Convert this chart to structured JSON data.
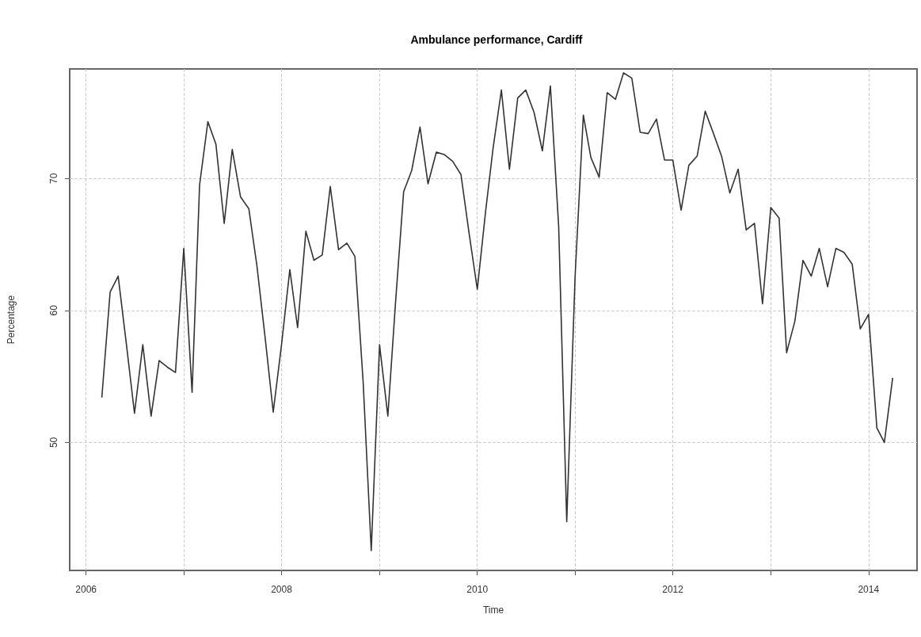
{
  "chart_data": {
    "type": "line",
    "title": "Ambulance performance, Cardiff",
    "xlabel": "Time",
    "ylabel": "Percentage",
    "x": [
      "2006-03",
      "2006-04",
      "2006-05",
      "2006-06",
      "2006-07",
      "2006-08",
      "2006-09",
      "2006-10",
      "2006-11",
      "2006-12",
      "2007-01",
      "2007-02",
      "2007-03",
      "2007-04",
      "2007-05",
      "2007-06",
      "2007-07",
      "2007-08",
      "2007-09",
      "2007-10",
      "2007-11",
      "2007-12",
      "2008-01",
      "2008-02",
      "2008-03",
      "2008-04",
      "2008-05",
      "2008-06",
      "2008-07",
      "2008-08",
      "2008-09",
      "2008-10",
      "2008-11",
      "2008-12",
      "2009-01",
      "2009-02",
      "2009-03",
      "2009-04",
      "2009-05",
      "2009-06",
      "2009-07",
      "2009-08",
      "2009-09",
      "2009-10",
      "2009-11",
      "2009-12",
      "2010-01",
      "2010-02",
      "2010-03",
      "2010-04",
      "2010-05",
      "2010-06",
      "2010-07",
      "2010-08",
      "2010-09",
      "2010-10",
      "2010-11",
      "2010-12",
      "2011-01",
      "2011-02",
      "2011-03",
      "2011-04",
      "2011-05",
      "2011-06",
      "2011-07",
      "2011-08",
      "2011-09",
      "2011-10",
      "2011-11",
      "2011-12",
      "2012-01",
      "2012-02",
      "2012-03",
      "2012-04",
      "2012-05",
      "2012-06",
      "2012-07",
      "2012-08",
      "2012-09",
      "2012-10",
      "2012-11",
      "2012-12",
      "2013-01",
      "2013-02",
      "2013-03",
      "2013-04",
      "2013-05",
      "2013-06",
      "2013-07",
      "2013-08",
      "2013-09",
      "2013-10",
      "2013-11",
      "2013-12",
      "2014-01",
      "2014-02",
      "2014-03",
      "2014-04"
    ],
    "series": [
      {
        "color": "#333333",
        "values": [
          53.4,
          61.4,
          62.6,
          57.4,
          52.2,
          57.4,
          52.0,
          56.2,
          55.7,
          55.3,
          64.7,
          53.8,
          69.5,
          74.3,
          72.6,
          66.6,
          72.2,
          68.6,
          67.7,
          63.4,
          57.9,
          52.3,
          57.4,
          63.1,
          58.7,
          66.0,
          63.8,
          64.2,
          69.4,
          64.6,
          65.1,
          64.1,
          54.5,
          41.8,
          57.4,
          52.0,
          60.4,
          69.0,
          70.6,
          73.9,
          69.6,
          72.0,
          71.8,
          71.3,
          70.3,
          65.9,
          61.6,
          67.5,
          72.3,
          76.7,
          70.7,
          76.1,
          76.7,
          75.0,
          72.1,
          77.0,
          66.3,
          44.0,
          62.5,
          74.8,
          71.6,
          70.1,
          76.5,
          76.0,
          78.0,
          77.6,
          73.5,
          73.4,
          74.5,
          71.4,
          71.4,
          67.6,
          71.0,
          71.7,
          75.1,
          73.4,
          71.7,
          68.9,
          70.7,
          66.1,
          66.6,
          60.5,
          67.8,
          67.0,
          56.8,
          59.2,
          63.8,
          62.6,
          64.7,
          61.8,
          64.7,
          64.4,
          63.5,
          58.6,
          59.7,
          51.1,
          50.0,
          54.9
        ]
      }
    ],
    "xlim": [
      "2005-11",
      "2014-07"
    ],
    "ylim": [
      40.3,
      78.3
    ],
    "xticks": [
      {
        "value": "2006",
        "label": "2006"
      },
      {
        "value": "2007",
        "label": null
      },
      {
        "value": "2008",
        "label": "2008"
      },
      {
        "value": "2009",
        "label": null
      },
      {
        "value": "2010",
        "label": "2010"
      },
      {
        "value": "2011",
        "label": null
      },
      {
        "value": "2012",
        "label": "2012"
      },
      {
        "value": "2013",
        "label": null
      },
      {
        "value": "2014",
        "label": "2014"
      }
    ],
    "yticks": [
      50,
      60,
      70
    ],
    "grid": true,
    "marker": "none",
    "line_style": "solid"
  }
}
